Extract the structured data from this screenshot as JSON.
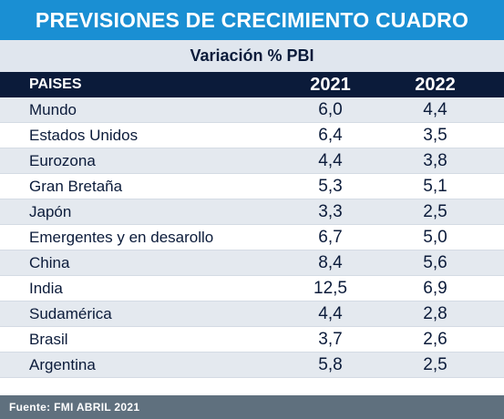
{
  "title": "PREVISIONES DE CRECIMIENTO CUADRO",
  "subtitle": "Variación % PBI",
  "footer": "Fuente: FMI ABRIL 2021",
  "colors": {
    "title_bg": "#1a8fd3",
    "header_bg": "#0b1b3a",
    "footer_bg": "#5f707e"
  },
  "chart_data": {
    "type": "table",
    "title": "PREVISIONES DE CRECIMIENTO CUADRO",
    "subtitle": "Variación % PBI",
    "columns": [
      "PAISES",
      "2021",
      "2022"
    ],
    "rows": [
      [
        "Mundo",
        "6,0",
        "4,4"
      ],
      [
        "Estados Unidos",
        "6,4",
        "3,5"
      ],
      [
        "Eurozona",
        "4,4",
        "3,8"
      ],
      [
        "Gran Bretaña",
        "5,3",
        "5,1"
      ],
      [
        "Japón",
        "3,3",
        "2,5"
      ],
      [
        "Emergentes y en desarollo",
        "6,7",
        "5,0"
      ],
      [
        "China",
        "8,4",
        "5,6"
      ],
      [
        "India",
        "12,5",
        "6,9"
      ],
      [
        "Sudamérica",
        "4,4",
        "2,8"
      ],
      [
        "Brasil",
        "3,7",
        "2,6"
      ],
      [
        "Argentina",
        "5,8",
        "2,5"
      ]
    ],
    "source": "Fuente: FMI ABRIL 2021"
  }
}
